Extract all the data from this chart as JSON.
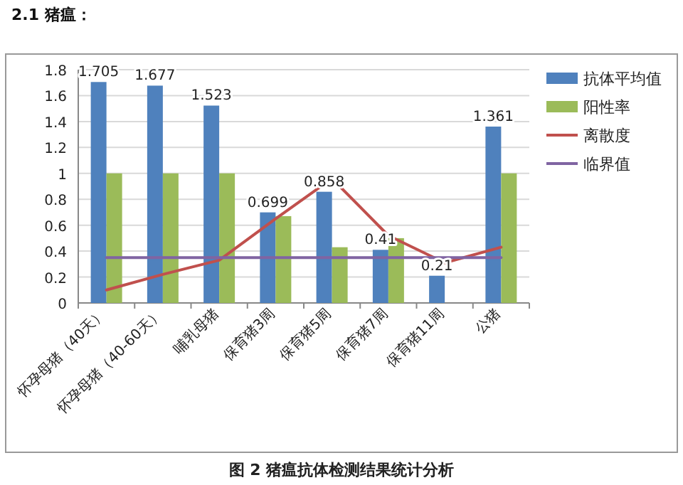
{
  "chart_data": {
    "type": "bar",
    "title": "2.1 猪瘟：",
    "annotations": [
      "图 2 猪瘟抗体检测结果统计分析"
    ],
    "categories": [
      "怀孕母猪（40天）",
      "怀孕母猪（40-60天）",
      "哺乳母猪",
      "保育猪3周",
      "保育猪5周",
      "保育猪7周",
      "保育猪11周",
      "公猪"
    ],
    "series": [
      {
        "name": "抗体平均值",
        "color": "#4f81bd",
        "values": [
          1.705,
          1.677,
          1.523,
          0.699,
          0.858,
          0.41,
          0.21,
          1.361
        ],
        "value_labels": [
          "1.705",
          "1.677",
          "1.523",
          "0.699",
          "0.858",
          "0.41",
          "0.21",
          "1.361"
        ]
      },
      {
        "name": "阳性率",
        "color": "#9bbb59",
        "values": [
          1,
          1,
          1,
          0.67,
          0.43,
          0.5,
          null,
          1
        ]
      },
      {
        "name": "离散度",
        "color": "#c0504d",
        "type": "line",
        "values": [
          0.1,
          0.22,
          0.33,
          0.65,
          0.96,
          0.52,
          0.31,
          0.43
        ]
      },
      {
        "name": "临界值",
        "color": "#8064a2",
        "type": "line",
        "values": [
          0.35,
          0.35,
          0.35,
          0.35,
          0.35,
          0.35,
          0.35,
          0.35
        ]
      }
    ],
    "ylim": [
      0,
      1.8
    ],
    "yticks": [
      0,
      0.2,
      0.4,
      0.6,
      0.8,
      1,
      1.2,
      1.4,
      1.6,
      1.8
    ],
    "grid": "y",
    "legend": "right"
  }
}
